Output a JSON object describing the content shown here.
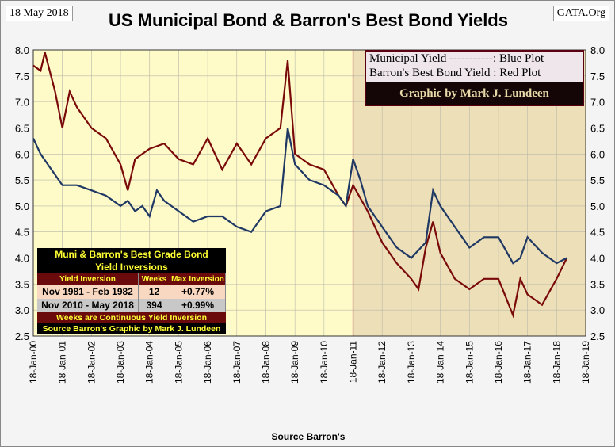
{
  "header": {
    "date": "18 May 2018",
    "site": "GATA.Org"
  },
  "chart_data": {
    "type": "line",
    "title": "US Municipal Bond & Barron's Best Bond Yields",
    "xlabel": "Source Barron's",
    "ylabel": "",
    "ylim": [
      2.5,
      8.0
    ],
    "yticks": [
      "2.5",
      "3.0",
      "3.5",
      "4.0",
      "4.5",
      "5.0",
      "5.5",
      "6.0",
      "6.5",
      "7.0",
      "7.5",
      "8.0"
    ],
    "xlim": [
      2000,
      2019
    ],
    "xticks": [
      "18-Jan-00",
      "18-Jan-01",
      "18-Jan-02",
      "18-Jan-03",
      "18-Jan-04",
      "18-Jan-05",
      "18-Jan-06",
      "18-Jan-07",
      "18-Jan-08",
      "18-Jan-09",
      "18-Jan-10",
      "18-Jan-11",
      "18-Jan-12",
      "18-Jan-13",
      "18-Jan-14",
      "18-Jan-15",
      "18-Jan-16",
      "18-Jan-17",
      "18-Jan-18",
      "18-Jan-19"
    ],
    "marker_year": 2011,
    "series": [
      {
        "name": "Municipal Yield",
        "color": "#1f3864",
        "x": [
          2000,
          2000.25,
          2000.5,
          2000.75,
          2001,
          2001.5,
          2002,
          2002.5,
          2003,
          2003.25,
          2003.5,
          2003.75,
          2004,
          2004.25,
          2004.5,
          2005,
          2005.5,
          2006,
          2006.5,
          2007,
          2007.5,
          2008,
          2008.5,
          2008.75,
          2009,
          2009.5,
          2010,
          2010.5,
          2010.75,
          2011,
          2011.25,
          2011.5,
          2012,
          2012.5,
          2013,
          2013.5,
          2013.75,
          2014,
          2014.5,
          2015,
          2015.5,
          2016,
          2016.5,
          2016.75,
          2017,
          2017.5,
          2018,
          2018.35
        ],
        "y": [
          6.3,
          6.0,
          5.8,
          5.6,
          5.4,
          5.4,
          5.3,
          5.2,
          5.0,
          5.1,
          4.9,
          5.0,
          4.8,
          5.3,
          5.1,
          4.9,
          4.7,
          4.8,
          4.8,
          4.6,
          4.5,
          4.9,
          5.0,
          6.5,
          5.8,
          5.5,
          5.4,
          5.2,
          5.0,
          5.9,
          5.5,
          5.0,
          4.6,
          4.2,
          4.0,
          4.3,
          5.3,
          5.0,
          4.6,
          4.2,
          4.4,
          4.4,
          3.9,
          4.0,
          4.4,
          4.1,
          3.9,
          4.0
        ]
      },
      {
        "name": "Barron's Best Bond Yield",
        "color": "#7a0a0a",
        "x": [
          2000,
          2000.25,
          2000.4,
          2000.75,
          2001,
          2001.25,
          2001.5,
          2002,
          2002.5,
          2003,
          2003.25,
          2003.5,
          2004,
          2004.5,
          2005,
          2005.5,
          2006,
          2006.5,
          2007,
          2007.5,
          2008,
          2008.5,
          2008.75,
          2009,
          2009.5,
          2010,
          2010.5,
          2010.75,
          2011,
          2011.5,
          2012,
          2012.5,
          2013,
          2013.25,
          2013.5,
          2013.75,
          2014,
          2014.5,
          2015,
          2015.5,
          2016,
          2016.5,
          2016.75,
          2017,
          2017.5,
          2018,
          2018.35
        ],
        "y": [
          7.7,
          7.6,
          7.95,
          7.2,
          6.5,
          7.2,
          6.9,
          6.5,
          6.3,
          5.8,
          5.3,
          5.9,
          6.1,
          6.2,
          5.9,
          5.8,
          6.3,
          5.7,
          6.2,
          5.8,
          6.3,
          6.5,
          7.8,
          6.0,
          5.8,
          5.7,
          5.2,
          5.0,
          5.4,
          4.9,
          4.3,
          3.9,
          3.6,
          3.4,
          4.2,
          4.7,
          4.1,
          3.6,
          3.4,
          3.6,
          3.6,
          2.9,
          3.6,
          3.3,
          3.1,
          3.6,
          4.0
        ]
      }
    ],
    "legend": {
      "line1": "Municipal  Yield -----------: Blue Plot",
      "line2": "Barron's Best Bond Yield : Red Plot",
      "credit": "Graphic by Mark J. Lundeen",
      "placement": "top-right"
    },
    "table": {
      "title1": "Muni & Barron's Best Grade Bond",
      "title2": "Yield Inversions",
      "headers": [
        "Yield Inversion",
        "Weeks",
        "Max Inversion"
      ],
      "rows": [
        [
          "Nov 1981 - Feb 1982",
          "12",
          "+0.77%"
        ],
        [
          "Nov 2010 - May 2018",
          "394",
          "+0.99%"
        ]
      ],
      "footer": "Weeks are Continuous Yield Inversion",
      "source": "Source Barron's Graphic by Mark J. Lundeen"
    }
  }
}
